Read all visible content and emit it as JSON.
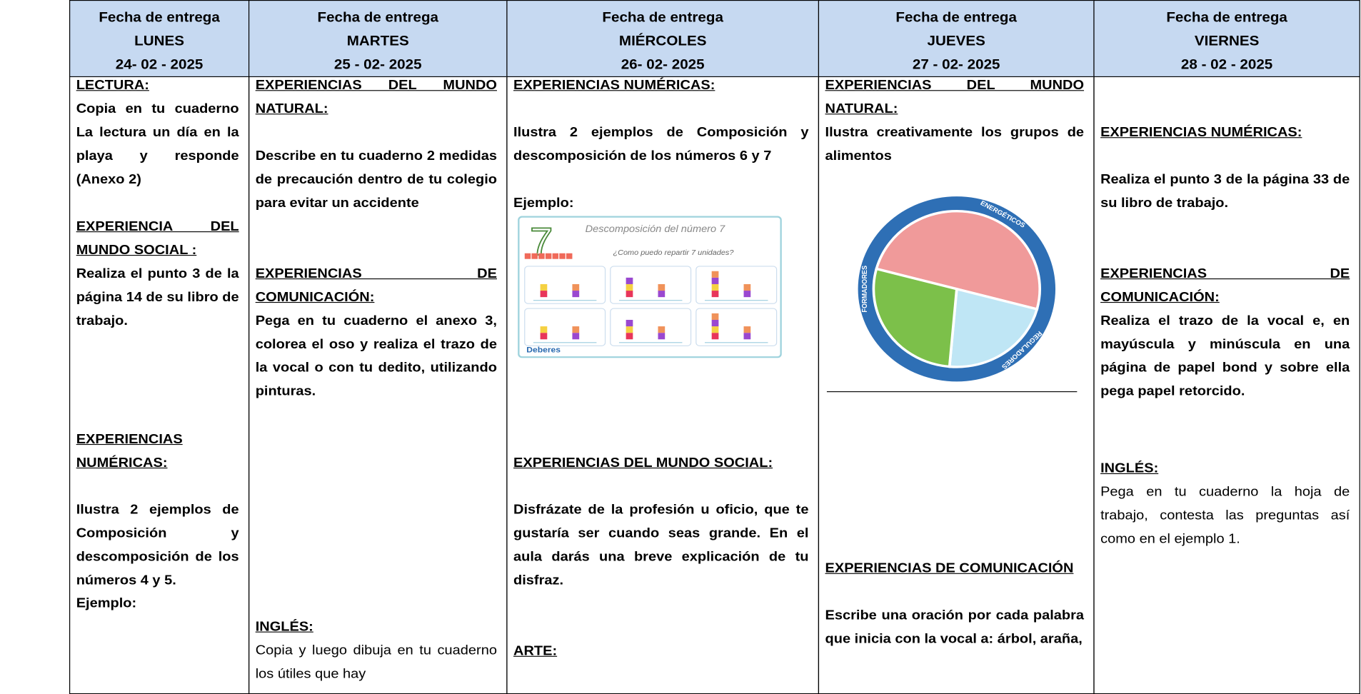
{
  "table": {
    "columns": [
      {
        "header": [
          "Fecha de entrega",
          "LUNES",
          "24- 02 - 2025"
        ],
        "blocks": [
          {
            "heading": "LECTURA:",
            "text": "Copia en tu cuaderno La lectura un día en la playa y responde (Anexo 2)"
          },
          {
            "heading": "EXPERIENCIA DEL MUNDO SOCIAL :",
            "text": "Realiza el punto 3 de la página 14 de su libro de trabajo."
          },
          {
            "heading": "EXPERIENCIAS NUMÉRICAS:",
            "text": "Ilustra 2 ejemplos de Composición y descomposición de los números 4 y 5."
          },
          {
            "text": "Ejemplo:"
          }
        ]
      },
      {
        "header": [
          "Fecha de entrega",
          "MARTES",
          "25 - 02- 2025"
        ],
        "blocks": [
          {
            "heading": "EXPERIENCIAS DEL MUNDO NATURAL:",
            "text": "Describe en tu cuaderno 2 medidas de precaución dentro de tu colegio para evitar un accidente"
          },
          {
            "heading": "EXPERIENCIAS DE COMUNICACIÓN:",
            "text": "Pega en tu cuaderno el anexo 3, colorea el oso y realiza el trazo de la vocal o con tu dedito, utilizando pinturas."
          },
          {
            "heading": "INGLÉS:",
            "plain_text": "Copia y luego dibuja en tu cuaderno los útiles que hay"
          }
        ]
      },
      {
        "header": [
          "Fecha de entrega",
          "MIÉRCOLES",
          "26- 02- 2025"
        ],
        "blocks": [
          {
            "heading": "EXPERIENCIAS NUMÉRICAS:",
            "text": "Ilustra 2 ejemplos de Composición y descomposición de los números 6 y 7"
          },
          {
            "text": "Ejemplo:"
          },
          {
            "heading": "EXPERIENCIAS DEL MUNDO SOCIAL:",
            "text": "Disfrázate de la profesión u oficio, que te gustaría ser cuando seas grande. En el aula darás una breve explicación de tu disfraz."
          },
          {
            "heading": "ARTE:"
          }
        ],
        "figure": {
          "number": "7",
          "title": "Descomposición del número 7",
          "subtitle": "¿Como puedo repartir 7 unidades?",
          "brand": "Deberes"
        }
      },
      {
        "header": [
          "Fecha de entrega",
          "JUEVES",
          "27 - 02- 2025"
        ],
        "blocks": [
          {
            "heading": "EXPERIENCIAS DEL MUNDO NATURAL:",
            "text": "Ilustra creativamente los grupos de alimentos"
          },
          {
            "heading": "EXPERIENCIAS DE COMUNICACIÓN",
            "text": "Escribe una oración por cada palabra que inicia con la vocal a: árbol, araña,"
          }
        ],
        "figure": {
          "labels": [
            "ENERGÉTICOS",
            "FORMADORES",
            "REGULADORES"
          ]
        }
      },
      {
        "header": [
          "Fecha de entrega",
          "VIERNES",
          "28 - 02 - 2025"
        ],
        "blocks": [
          {
            "heading": "EXPERIENCIAS NUMÉRICAS:",
            "text": "Realiza el punto 3 de la página 33 de su libro de trabajo."
          },
          {
            "heading": "EXPERIENCIAS DE COMUNICACIÓN:",
            "text": "Realiza el trazo de la vocal e, en mayúscula y minúscula en una página de papel bond y sobre ella pega papel retorcido."
          },
          {
            "heading": "INGLÉS:",
            "plain_text": "Pega en tu cuaderno la hoja de trabajo, contesta las preguntas así como en el ejemplo 1."
          }
        ]
      }
    ]
  }
}
